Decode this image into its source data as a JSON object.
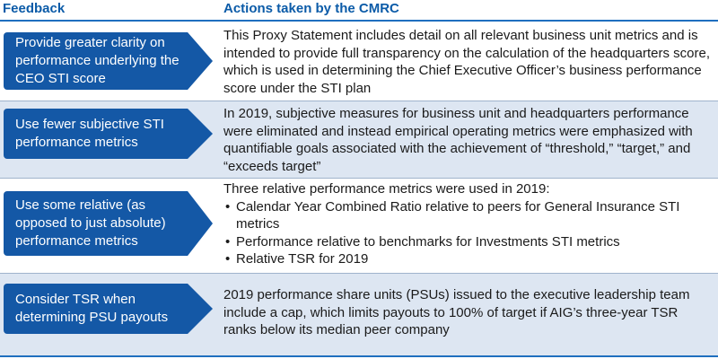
{
  "header": {
    "feedback": "Feedback",
    "actions": "Actions taken by the CMRC"
  },
  "rows": [
    {
      "feedback": "Provide greater clarity on performance underlying the CEO STI score",
      "action": "This Proxy Statement includes detail on all relevant business unit metrics and is intended to provide full transparency on the calculation of the headquarters score, which is used in determining the Chief Executive Officer’s business performance score under the STI plan"
    },
    {
      "feedback": "Use fewer subjective STI performance metrics",
      "action": "In 2019, subjective measures for business unit and headquarters performance were eliminated and instead empirical operating metrics were emphasized with quantifiable goals associated with the achievement of “threshold,” “target,” and “exceeds target”"
    },
    {
      "feedback": "Use some relative (as opposed to just absolute) performance metrics",
      "action_intro": "Three relative performance metrics were used in 2019:",
      "bullets": [
        "Calendar Year Combined Ratio relative to peers for General Insurance STI metrics",
        "Performance relative to benchmarks for Investments STI metrics",
        "Relative TSR for 2019"
      ]
    },
    {
      "feedback": "Consider TSR when determining PSU payouts",
      "action": "2019 performance share units (PSUs) issued to the executive leadership team include a cap, which limits payouts to 100% of target if AIG’s three-year TSR ranks below its median peer company"
    }
  ]
}
